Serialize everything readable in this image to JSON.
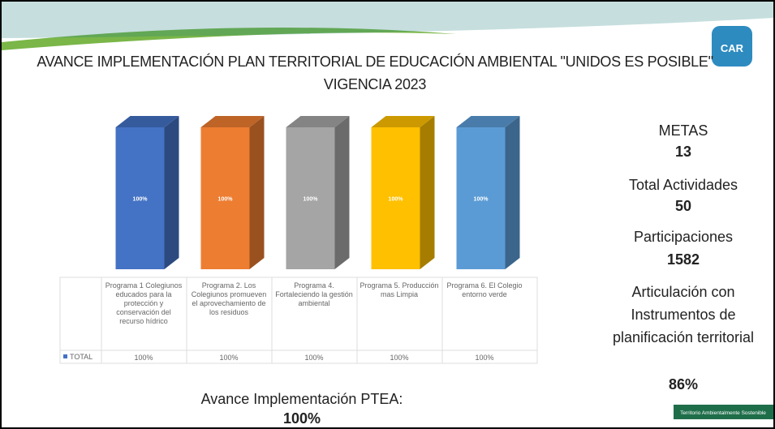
{
  "chart_data": {
    "type": "bar",
    "title": "AVANCE IMPLEMENTACIÓN PLAN TERRITORIAL DE EDUCACIÓN AMBIENTAL \"UNIDOS ES POSIBLE\" VIGENCIA 2023",
    "categories": [
      "Programa 1 Colegiunos educados para la protección y conservación del recurso hídrico",
      "Programa 2. Los Colegiunos promueven el aprovechamiento de los residuos",
      "Programa 4. Fortaleciendo la gestión ambiental",
      "Programa 5. Producción mas Limpia",
      "Programa 6. El Colegio entorno verde"
    ],
    "series": [
      {
        "name": "TOTAL",
        "color": "#4472c4",
        "colors": [
          "#4472c4",
          "#ed7d31",
          "#a5a5a5",
          "#ffc000",
          "#5b9bd5"
        ],
        "values": [
          100,
          100,
          100,
          100,
          100
        ],
        "value_labels": [
          "100%",
          "100%",
          "100%",
          "100%",
          "100%"
        ]
      }
    ]
  },
  "panel": {
    "items": [
      {
        "label": "METAS",
        "value": "13"
      },
      {
        "label": "Total Actividades",
        "value": "50"
      },
      {
        "label": "Participaciones",
        "value": "1582"
      },
      {
        "label": "Articulación con Instrumentos de planificación territorial",
        "value": "86%"
      }
    ]
  },
  "summary": {
    "label": "Avance Implementación PTEA:",
    "value": "100%"
  },
  "logo": "CAR",
  "footer": "Territorio Ambientalmente Sostenible"
}
